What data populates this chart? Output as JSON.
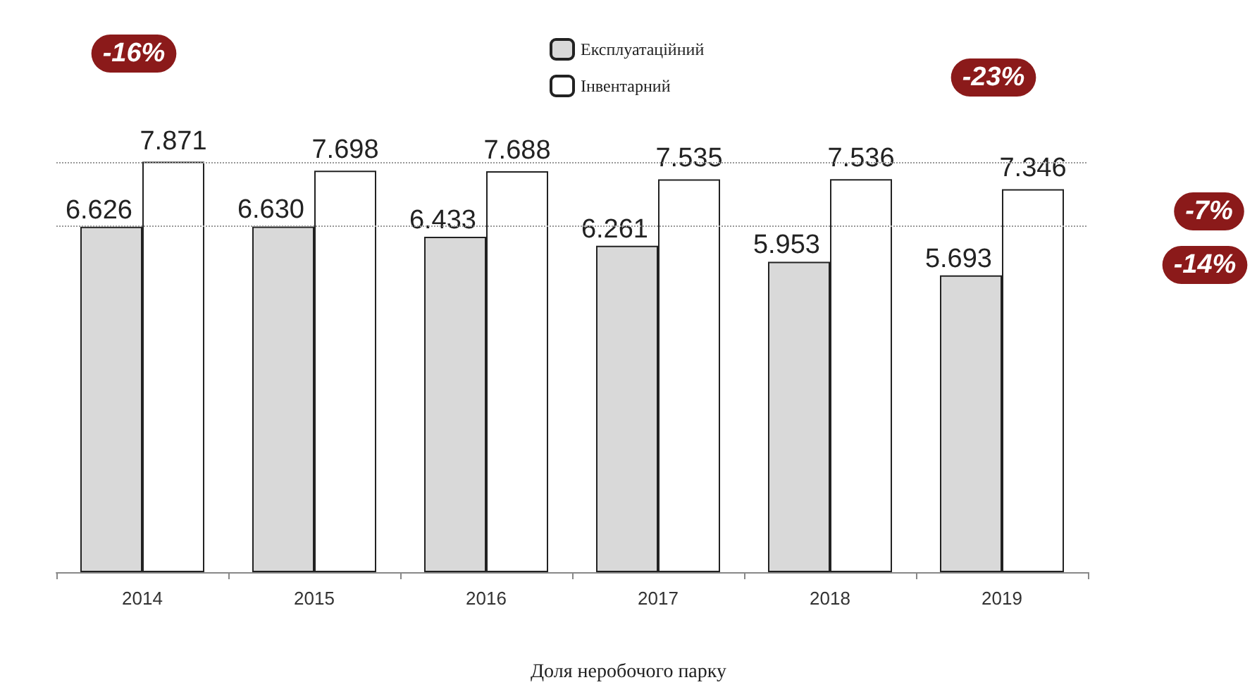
{
  "chart_data": {
    "type": "bar",
    "categories": [
      "2014",
      "2015",
      "2016",
      "2017",
      "2018",
      "2019"
    ],
    "series": [
      {
        "name": "Експлуатаційний",
        "color": "#d9d9d9",
        "values": [
          6.626,
          6.63,
          6.433,
          6.261,
          5.953,
          5.693
        ],
        "value_labels": [
          "6.626",
          "6.630",
          "6.433",
          "6.261",
          "5.953",
          "5.693"
        ]
      },
      {
        "name": "Інвентарний",
        "color": "#ffffff",
        "values": [
          7.871,
          7.698,
          7.688,
          7.535,
          7.536,
          7.346
        ],
        "value_labels": [
          "7.871",
          "7.698",
          "7.688",
          "7.535",
          "7.536",
          "7.346"
        ]
      }
    ],
    "tick_labels": "x",
    "legend": "top",
    "ref_lines": [
      {
        "axis": "y",
        "value": 7.871,
        "line_style": "dotted",
        "color": "#999999"
      },
      {
        "axis": "y",
        "value": 6.626,
        "line_style": "dotted",
        "color": "#999999"
      }
    ],
    "annotations": [
      "-16%",
      "-23%",
      "-7%",
      "-14%",
      "Доля неробочого парку"
    ]
  }
}
